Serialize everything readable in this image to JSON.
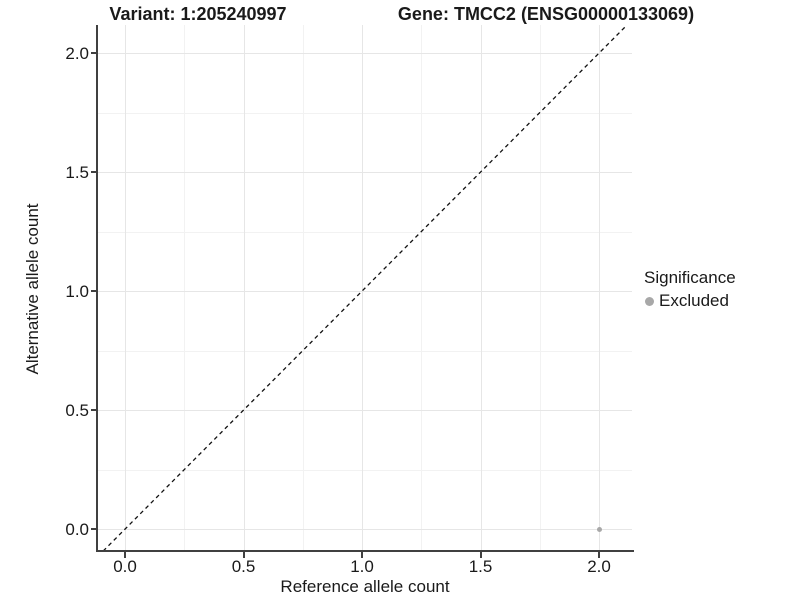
{
  "chart_data": {
    "type": "scatter",
    "title_left": "Variant: 1:205240997",
    "title_right": "Gene: TMCC2 (ENSG00000133069)",
    "xlabel": "Reference allele count",
    "ylabel": "Alternative allele count",
    "xlim": [
      -0.114,
      2.139
    ],
    "ylim": [
      -0.092,
      2.118
    ],
    "x_ticks": {
      "values": [
        0,
        0.5,
        1,
        1.5,
        2
      ],
      "labels": [
        "0.0",
        "0.5",
        "1.0",
        "1.5",
        "2.0"
      ]
    },
    "y_ticks": {
      "values": [
        0,
        0.5,
        1,
        1.5,
        2
      ],
      "labels": [
        "0.0",
        "0.5",
        "1.0",
        "1.5",
        "2.0"
      ]
    },
    "x_minor": [
      0.25,
      0.75,
      1.25,
      1.75
    ],
    "y_minor": [
      0.25,
      0.75,
      1.25,
      1.75
    ],
    "grid": true,
    "legend_position": "right",
    "identity_line": {
      "slope": 1,
      "intercept": 0,
      "style": "dashed",
      "color": "#111111"
    },
    "series": [
      {
        "name": "Excluded",
        "color": "#a8a8a8",
        "points": [
          {
            "x": 2.0,
            "y": 0.0
          }
        ]
      }
    ],
    "legend": {
      "title": "Significance",
      "items": [
        {
          "label": "Excluded",
          "color": "#a8a8a8"
        }
      ]
    },
    "colors": {
      "axis_line": "#404040",
      "tick_mark": "#404040",
      "grid_major": "#e6e6e6",
      "grid_minor": "#f2f2f2",
      "text": "#1a1a1a"
    }
  }
}
